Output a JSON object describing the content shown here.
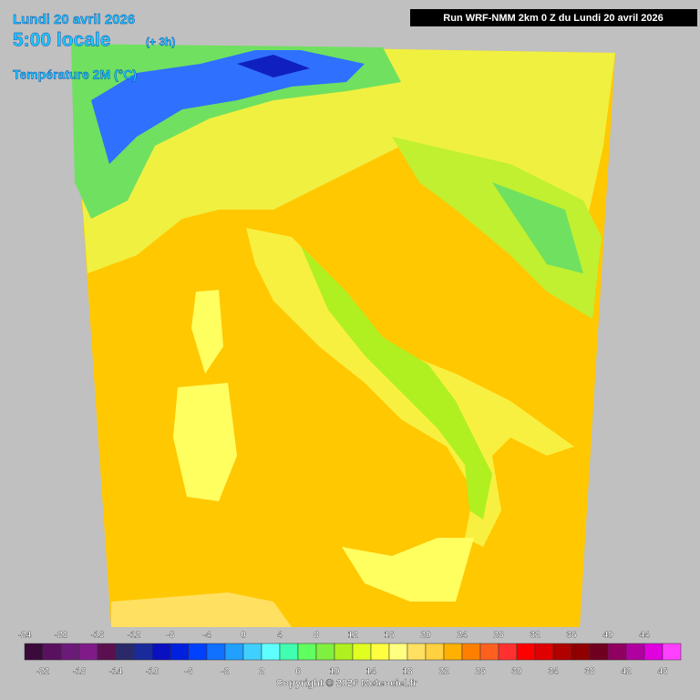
{
  "header": {
    "date": "Lundi 20 avril 2026",
    "time": "5:00 locale",
    "offset": "(+ 3h)",
    "variable": "Température 2M (°C)",
    "run": "Run WRF-NMM 2km 0 Z du Lundi 20 avril 2026"
  },
  "legend": {
    "ticks_top": [
      -24,
      -20,
      -16,
      -12,
      -8,
      -4,
      0,
      4,
      8,
      12,
      16,
      20,
      24,
      28,
      32,
      36,
      40,
      44
    ],
    "ticks_bottom": [
      -22,
      -18,
      -14,
      -10,
      -6,
      -2,
      2,
      6,
      10,
      14,
      18,
      22,
      26,
      30,
      34,
      38,
      42,
      46
    ],
    "colors": [
      "#3a0a3a",
      "#5a1060",
      "#6b1a7a",
      "#801a8a",
      "#5a1050",
      "#2a2a6a",
      "#1a2a9a",
      "#0a10c0",
      "#0020e0",
      "#0040ff",
      "#1070ff",
      "#20a0ff",
      "#40d0ff",
      "#60ffff",
      "#40ffb0",
      "#60ff60",
      "#80f040",
      "#b0f020",
      "#e0ff20",
      "#ffff40",
      "#ffff80",
      "#ffe060",
      "#ffd040",
      "#ffb000",
      "#ff8000",
      "#ff6020",
      "#ff3030",
      "#ff0000",
      "#e00000",
      "#b00000",
      "#900000",
      "#700020",
      "#900060",
      "#b000a0",
      "#e000e0",
      "#ff40ff"
    ]
  },
  "copyright": "Copyright © 2026 Meteociel.fr"
}
